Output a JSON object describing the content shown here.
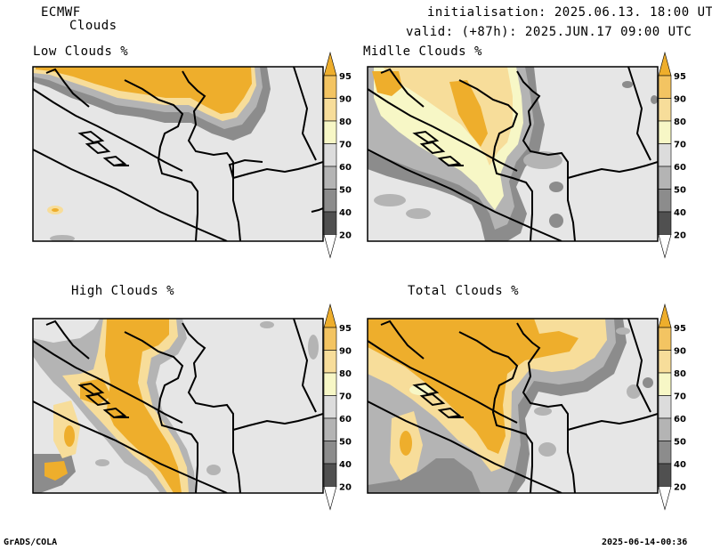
{
  "header": {
    "model": "ECMWF",
    "product": "Clouds",
    "initialisation": "initialisation: 2025.06.13. 18:00 UTC",
    "valid": "valid: (+87h): 2025.JUN.17 09:00 UTC"
  },
  "panels": [
    {
      "title": "Low Clouds %"
    },
    {
      "title": "Midlle Clouds %"
    },
    {
      "title": "High Clouds %"
    },
    {
      "title": "Total Clouds %"
    }
  ],
  "legend": {
    "levels": [
      "95",
      "90",
      "80",
      "70",
      "60",
      "50",
      "40",
      "20"
    ],
    "colors": {
      "95": "#eeae2c",
      "90": "#f3c462",
      "80": "#f7dd9a",
      "70": "#f7f7c6",
      "60": "#dcdcdc",
      "50": "#b4b4b4",
      "40": "#8c8c8c",
      "20": "#505050"
    }
  },
  "colors": {
    "land": "#e6e6e6",
    "cloud_max": "#eeae2c"
  },
  "footer": {
    "left": "GrADS/COLA",
    "right": "2025-06-14-00:36"
  }
}
